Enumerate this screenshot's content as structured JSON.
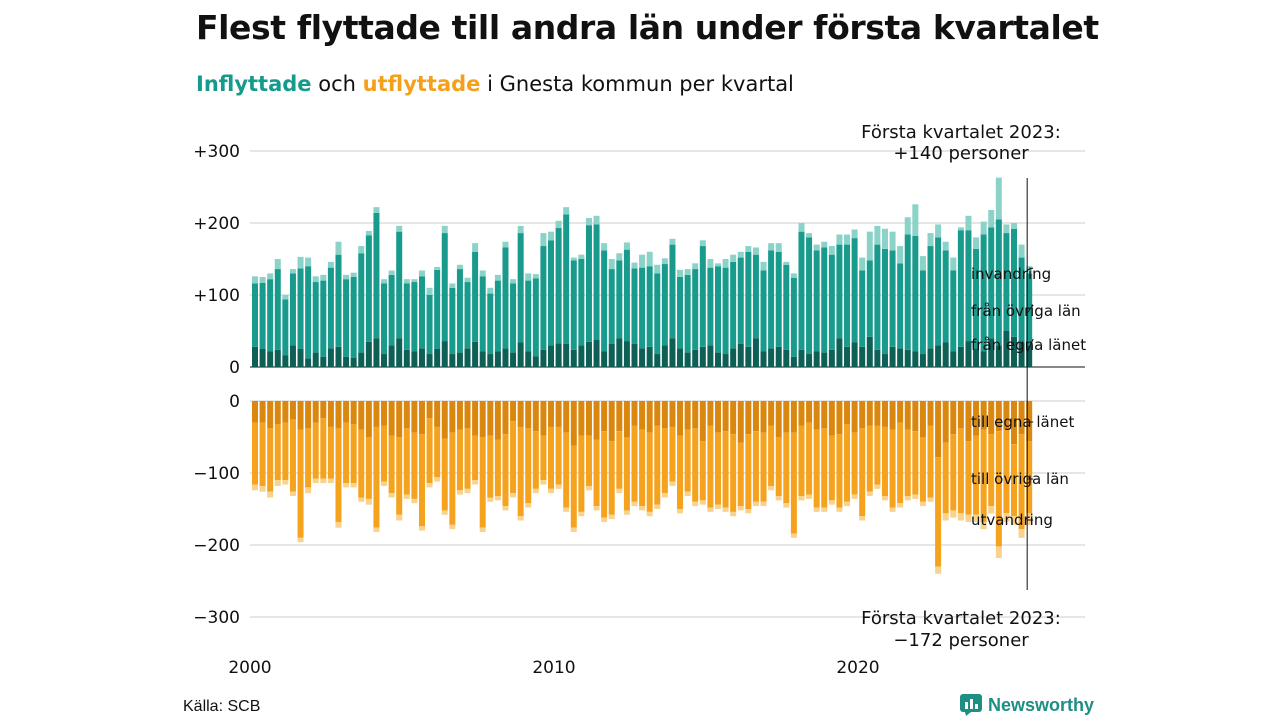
{
  "title": "Flest flyttade till andra län under första kvartalet",
  "subtitle": {
    "inflow_word": "Inflyttade",
    "connector": "och",
    "outflow_word": "utflyttade",
    "rest": "i Gnesta kommun per kvartal"
  },
  "source": "Källa: SCB",
  "logo": {
    "text": "Newsworthy",
    "icon": "newsworthy-chart-icon"
  },
  "colors": {
    "in_own_county": "#0e5f55",
    "in_other_counties": "#189a8c",
    "in_immigration": "#8bd3c8",
    "out_own_county": "#d9870f",
    "out_other_counties": "#f5a21e",
    "out_emigration": "#f9d28c",
    "grid": "#dddddd"
  },
  "chart_data": {
    "type": "bar",
    "stacked": true,
    "period": "kvartal",
    "x_start": "2000 Q1",
    "x_end": "2023 Q1",
    "xticks": [
      "2000",
      "2010",
      "2020"
    ],
    "inflow_panel": {
      "ylim": [
        0,
        300
      ],
      "yticks": [
        0,
        100,
        200,
        300
      ],
      "ytick_labels": [
        "0",
        "+100",
        "+200",
        "+300"
      ],
      "series": [
        {
          "name": "från egna länet",
          "values": [
            28,
            25,
            22,
            24,
            16,
            30,
            25,
            12,
            20,
            14,
            26,
            28,
            14,
            13,
            20,
            35,
            40,
            18,
            30,
            40,
            24,
            22,
            26,
            18,
            25,
            36,
            18,
            20,
            26,
            35,
            22,
            18,
            22,
            26,
            20,
            34,
            22,
            15,
            24,
            30,
            33,
            32,
            24,
            30,
            35,
            38,
            22,
            32,
            40,
            36,
            32,
            26,
            28,
            18,
            30,
            40,
            26,
            20,
            24,
            28,
            30,
            20,
            18,
            26,
            32,
            28,
            40,
            22,
            26,
            28,
            24,
            14,
            24,
            18,
            22,
            20,
            24,
            40,
            28,
            34,
            28,
            42,
            24,
            18,
            28,
            26,
            24,
            22,
            18,
            26,
            30,
            34,
            22,
            28,
            36,
            26,
            22,
            40,
            30,
            50,
            42,
            34,
            30
          ]
        },
        {
          "name": "från övriga län",
          "values": [
            88,
            92,
            100,
            112,
            78,
            100,
            112,
            128,
            98,
            106,
            112,
            128,
            108,
            112,
            138,
            148,
            174,
            98,
            98,
            148,
            92,
            96,
            100,
            82,
            110,
            150,
            92,
            116,
            92,
            125,
            104,
            84,
            98,
            140,
            96,
            152,
            98,
            108,
            144,
            146,
            160,
            180,
            124,
            120,
            162,
            160,
            140,
            104,
            108,
            127,
            105,
            112,
            112,
            112,
            113,
            130,
            99,
            108,
            112,
            140,
            108,
            120,
            120,
            120,
            120,
            132,
            116,
            112,
            136,
            132,
            118,
            110,
            164,
            162,
            140,
            146,
            132,
            130,
            142,
            145,
            106,
            106,
            146,
            146,
            134,
            118,
            160,
            160,
            116,
            142,
            150,
            128,
            112,
            162,
            154,
            138,
            162,
            154,
            175,
            136,
            150,
            118,
            100
          ]
        },
        {
          "name": "invandring",
          "values": [
            10,
            8,
            8,
            14,
            6,
            6,
            16,
            12,
            8,
            8,
            8,
            18,
            6,
            6,
            10,
            6,
            8,
            6,
            6,
            8,
            6,
            4,
            8,
            10,
            4,
            10,
            6,
            6,
            6,
            12,
            8,
            8,
            8,
            8,
            6,
            10,
            10,
            6,
            18,
            12,
            10,
            10,
            4,
            6,
            10,
            12,
            10,
            14,
            10,
            10,
            8,
            18,
            20,
            12,
            8,
            8,
            10,
            8,
            8,
            8,
            12,
            4,
            12,
            10,
            8,
            8,
            10,
            12,
            10,
            12,
            4,
            6,
            12,
            6,
            8,
            8,
            12,
            14,
            14,
            12,
            18,
            40,
            26,
            28,
            26,
            24,
            24,
            44,
            20,
            18,
            18,
            12,
            18,
            4,
            20,
            16,
            18,
            24,
            58,
            12,
            8,
            18,
            10
          ]
        }
      ]
    },
    "outflow_panel": {
      "ylim": [
        -300,
        0
      ],
      "yticks": [
        0,
        -100,
        -200,
        -300
      ],
      "ytick_labels": [
        "0",
        "−100",
        "−200",
        "−300"
      ],
      "series": [
        {
          "name": "till egna länet",
          "values": [
            -30,
            -30,
            -38,
            -32,
            -30,
            -26,
            -40,
            -38,
            -30,
            -24,
            -36,
            -38,
            -30,
            -32,
            -40,
            -50,
            -36,
            -34,
            -48,
            -50,
            -38,
            -44,
            -46,
            -24,
            -36,
            -52,
            -44,
            -40,
            -38,
            -48,
            -50,
            -48,
            -54,
            -46,
            -28,
            -36,
            -38,
            -42,
            -48,
            -36,
            -36,
            -44,
            -62,
            -48,
            -48,
            -54,
            -42,
            -56,
            -42,
            -50,
            -34,
            -40,
            -44,
            -34,
            -38,
            -36,
            -48,
            -40,
            -38,
            -56,
            -34,
            -44,
            -42,
            -46,
            -58,
            -46,
            -42,
            -44,
            -34,
            -50,
            -44,
            -44,
            -34,
            -30,
            -40,
            -38,
            -48,
            -46,
            -32,
            -44,
            -38,
            -34,
            -34,
            -36,
            -40,
            -30,
            -40,
            -42,
            -50,
            -34,
            -78,
            -58,
            -46,
            -38,
            -56,
            -48,
            -40,
            -46,
            -42,
            -40,
            -60,
            -46,
            -56
          ]
        },
        {
          "name": "till övriga län",
          "values": [
            -86,
            -88,
            -88,
            -78,
            -80,
            -100,
            -150,
            -82,
            -78,
            -84,
            -72,
            -130,
            -84,
            -82,
            -94,
            -86,
            -140,
            -78,
            -80,
            -108,
            -92,
            -92,
            -128,
            -90,
            -70,
            -100,
            -128,
            -84,
            -84,
            -62,
            -126,
            -86,
            -78,
            -100,
            -100,
            -124,
            -104,
            -80,
            -62,
            -86,
            -80,
            -104,
            -114,
            -106,
            -70,
            -92,
            -120,
            -102,
            -80,
            -102,
            -106,
            -106,
            -110,
            -110,
            -90,
            -76,
            -102,
            -86,
            -102,
            -82,
            -114,
            -100,
            -106,
            -108,
            -88,
            -104,
            -98,
            -96,
            -84,
            -82,
            -98,
            -140,
            -98,
            -100,
            -108,
            -110,
            -90,
            -102,
            -108,
            -86,
            -122,
            -92,
            -82,
            -96,
            -108,
            -112,
            -92,
            -88,
            -90,
            -100,
            -152,
            -98,
            -106,
            -118,
            -102,
            -110,
            -128,
            -100,
            -160,
            -116,
            -100,
            -132,
            -100
          ]
        },
        {
          "name": "utvandring",
          "values": [
            -8,
            -8,
            -8,
            -8,
            -6,
            -6,
            -6,
            -8,
            -6,
            -6,
            -6,
            -8,
            -6,
            -6,
            -6,
            -8,
            -6,
            -6,
            -6,
            -8,
            -6,
            -6,
            -6,
            -6,
            -6,
            -6,
            -6,
            -6,
            -6,
            -6,
            -6,
            -6,
            -6,
            -6,
            -6,
            -6,
            -6,
            -6,
            -6,
            -6,
            -6,
            -6,
            -6,
            -6,
            -6,
            -6,
            -6,
            -6,
            -6,
            -6,
            -6,
            -6,
            -6,
            -6,
            -6,
            -6,
            -6,
            -6,
            -6,
            -6,
            -6,
            -6,
            -6,
            -6,
            -6,
            -6,
            -6,
            -6,
            -6,
            -6,
            -6,
            -6,
            -6,
            -6,
            -6,
            -6,
            -6,
            -6,
            -6,
            -6,
            -6,
            -6,
            -6,
            -6,
            -6,
            -6,
            -6,
            -6,
            -6,
            -6,
            -10,
            -10,
            -10,
            -10,
            -10,
            -10,
            -10,
            -10,
            -16,
            -12,
            -12,
            -12,
            -16
          ]
        }
      ]
    },
    "annotations": {
      "top": {
        "line1": "Första kvartalet 2023:",
        "line2": "+140 personer"
      },
      "bottom": {
        "line1": "Första kvartalet 2023:",
        "line2": "−172 personer"
      }
    }
  }
}
